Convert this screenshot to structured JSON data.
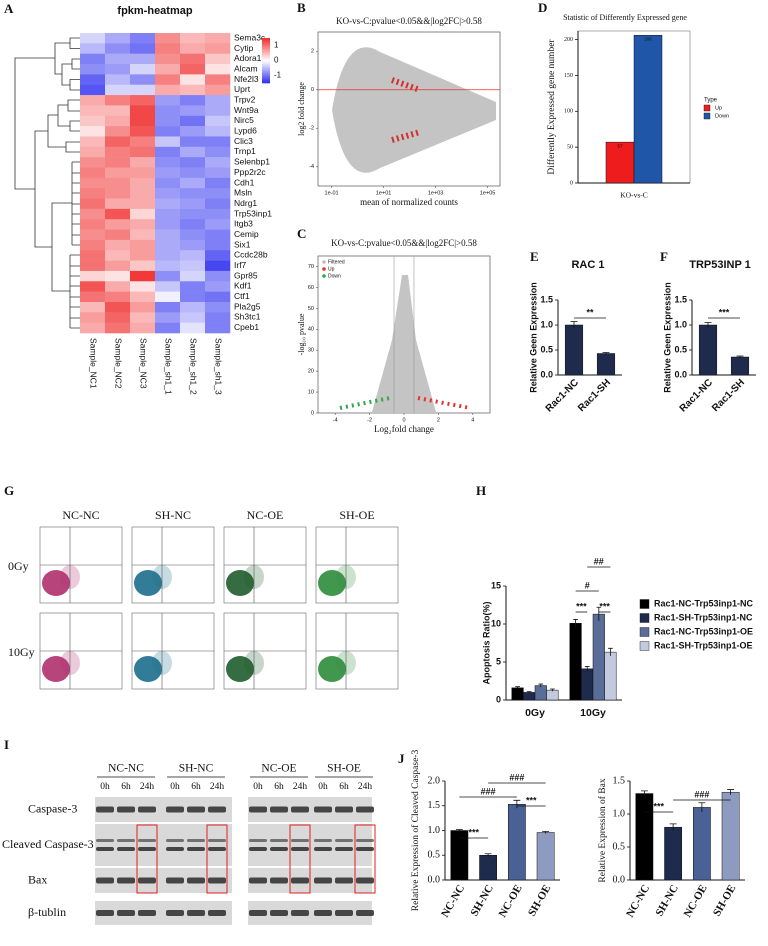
{
  "panel_labels": [
    "A",
    "B",
    "C",
    "D",
    "E",
    "F",
    "G",
    "H",
    "I",
    "J"
  ],
  "chart_data": [
    {
      "type": "heatmap",
      "title": "fpkm-heatmap",
      "categories": [
        "Sample_NC1",
        "Sample_NC2",
        "Sample_NC3",
        "Sample_sh1_1",
        "Sample_sh1_2",
        "Sample_sh1_3"
      ],
      "rows": [
        "Sema3c",
        "Cytip",
        "Adora1",
        "Alcam",
        "Nfe2l3",
        "Uprt",
        "Trpv2",
        "Wnt9a",
        "Nirc5",
        "Lypd6",
        "Clic3",
        "Trnp1",
        "Selenbp1",
        "Ppp2r2c",
        "Cdh1",
        "Msln",
        "Ndrg1",
        "Trp53inp1",
        "Itgb3",
        "Cemip",
        "Six1",
        "Ccdc28b",
        "Irf7",
        "Gpr85",
        "Kdf1",
        "Ctf1",
        "Pla2g5",
        "Sh3tc1",
        "Cpeb1"
      ],
      "values": [
        [
          -0.3,
          -0.6,
          -0.9,
          0.8,
          0.5,
          0.6
        ],
        [
          -0.5,
          -0.8,
          -1.0,
          0.9,
          0.6,
          0.7
        ],
        [
          -0.9,
          -0.6,
          -0.6,
          0.8,
          1.0,
          0.4
        ],
        [
          -0.8,
          -0.7,
          -0.3,
          0.6,
          1.1,
          0.2
        ],
        [
          -1.1,
          -0.5,
          -0.8,
          0.9,
          0.2,
          0.9
        ],
        [
          -1.2,
          -0.3,
          -0.3,
          0.6,
          0.5,
          0.7
        ],
        [
          0.6,
          0.9,
          1.1,
          -0.7,
          -0.9,
          -0.6
        ],
        [
          0.5,
          0.5,
          1.3,
          -0.8,
          -0.7,
          -0.6
        ],
        [
          0.4,
          0.6,
          1.3,
          -0.8,
          -1.0,
          -0.4
        ],
        [
          0.2,
          0.8,
          1.2,
          -0.9,
          -0.7,
          -0.5
        ],
        [
          0.5,
          1.1,
          0.9,
          -0.4,
          -0.9,
          -0.9
        ],
        [
          0.6,
          0.9,
          1.0,
          -0.9,
          -0.6,
          -0.8
        ],
        [
          0.8,
          0.9,
          0.6,
          -0.8,
          -0.9,
          -0.6
        ],
        [
          0.9,
          0.7,
          0.7,
          -0.7,
          -0.8,
          -0.7
        ],
        [
          0.8,
          0.8,
          0.6,
          -0.8,
          -0.6,
          -0.9
        ],
        [
          0.9,
          0.8,
          0.6,
          -0.7,
          -0.8,
          -0.8
        ],
        [
          1.0,
          0.6,
          0.6,
          -0.6,
          -0.7,
          -0.9
        ],
        [
          0.8,
          1.2,
          0.3,
          -0.7,
          -0.8,
          -0.8
        ],
        [
          0.9,
          0.7,
          0.6,
          -0.7,
          -0.9,
          -0.7
        ],
        [
          0.8,
          0.9,
          0.5,
          -0.6,
          -0.8,
          -0.9
        ],
        [
          0.9,
          0.6,
          0.7,
          -0.6,
          -0.7,
          -0.9
        ],
        [
          1.0,
          0.5,
          0.7,
          -0.6,
          -0.5,
          -1.1
        ],
        [
          1.0,
          0.7,
          0.4,
          -0.5,
          -0.4,
          -1.3
        ],
        [
          0.3,
          0.2,
          1.4,
          -0.8,
          -0.3,
          -0.8
        ],
        [
          1.2,
          0.6,
          0.2,
          -0.4,
          -0.9,
          -0.7
        ],
        [
          1.0,
          0.9,
          0.5,
          -0.1,
          -0.9,
          -1.0
        ],
        [
          0.5,
          1.2,
          0.7,
          -0.9,
          -0.5,
          -0.8
        ],
        [
          0.7,
          1.1,
          0.5,
          -0.7,
          -0.4,
          -0.9
        ],
        [
          0.6,
          1.0,
          0.6,
          -0.9,
          -0.2,
          -0.9
        ]
      ],
      "zlim": [
        -1.5,
        1.5
      ],
      "colorbar_ticks": [
        1,
        0,
        -1
      ],
      "colors": {
        "low": "#2b2bf0",
        "mid": "#ffffff",
        "high": "#f02b2b"
      }
    },
    {
      "type": "scatter",
      "title": "KO-vs-C:pvalue<0.05&&|log2FC|>0.58",
      "x_label": "mean of normalized counts",
      "y_label": "log2 fold change",
      "xscale": "log",
      "xlim": [
        0.03,
        300000
      ],
      "xticks": [
        {
          "value": 0.1,
          "label": "1e-01"
        },
        {
          "value": 10,
          "label": "1e+01"
        },
        {
          "value": 1000,
          "label": "1e+03"
        },
        {
          "value": 100000,
          "label": "1e+05"
        }
      ],
      "ylim": [
        -5,
        3
      ],
      "yticks": [
        -4,
        -2,
        0,
        2
      ],
      "reference_line": 0,
      "reference_color": "#e8322e"
    },
    {
      "type": "bar",
      "title": "Statistic of Differently Expressed gene",
      "y_label": "Differently Expressed gene number",
      "categories": [
        "KO-vs-C"
      ],
      "series": [
        {
          "name": "Up",
          "color": "#ee1c1c",
          "values": [
            57
          ]
        },
        {
          "name": "Down",
          "color": "#1f56a8",
          "values": [
            206
          ]
        }
      ],
      "legend_title": "Type",
      "show_values": true,
      "ylim": [
        0,
        212
      ],
      "yticks": [
        0,
        50,
        100,
        150,
        200
      ]
    },
    {
      "type": "scatter",
      "title": "KO-vs-C:pvalue<0.05&&|log2FC|>0.58",
      "x_label": "Log₂fold change",
      "y_label": "-log₁₀ pvalue",
      "xlim": [
        -5,
        5
      ],
      "xticks": [
        -4,
        -2,
        0,
        2,
        4
      ],
      "ylim": [
        0,
        75
      ],
      "yticks": [
        0,
        10,
        20,
        30,
        40,
        50,
        60,
        70
      ],
      "vlines": [
        -0.58,
        0.58
      ],
      "series": [
        {
          "name": "Filtered",
          "color": "#bdbdbd"
        },
        {
          "name": "Up",
          "color": "#e8322e"
        },
        {
          "name": "Down",
          "color": "#2ea84a"
        }
      ]
    },
    {
      "type": "bar",
      "title": "RAC 1",
      "y_label": "Relative Geen Expression",
      "categories": [
        "Rac1-NC",
        "Rac1-SH"
      ],
      "values": [
        1.0,
        0.43
      ],
      "errors": [
        0.07,
        0.02
      ],
      "color": "#1f2b4d",
      "ylim": [
        0,
        1.5
      ],
      "yticks": [
        {
          "value": 0,
          "label": "0.0"
        },
        {
          "value": 0.5,
          "label": "0.5"
        },
        {
          "value": 1,
          "label": "1.0"
        },
        {
          "value": 1.5,
          "label": "1.5"
        }
      ],
      "annotations": [
        "**"
      ]
    },
    {
      "type": "bar",
      "title": "TRP53INP 1",
      "y_label": "Relative Geen Expression",
      "categories": [
        "Rac1-NC",
        "Rac1-SH"
      ],
      "values": [
        1.0,
        0.36
      ],
      "errors": [
        0.05,
        0.02
      ],
      "color": "#1f2b4d",
      "ylim": [
        0,
        1.5
      ],
      "yticks": [
        {
          "value": 0,
          "label": "0.0"
        },
        {
          "value": 0.5,
          "label": "0.5"
        },
        {
          "value": 1,
          "label": "1.0"
        },
        {
          "value": 1.5,
          "label": "1.5"
        }
      ],
      "annotations": [
        "***"
      ]
    },
    {
      "type": "bar",
      "y_label": "Apoptosis Ratio(%)",
      "categories": [
        "0Gy",
        "10Gy"
      ],
      "series": [
        {
          "name": "Rac1-NC-Trp53inp1-NC",
          "color": "#000000",
          "values": [
            1.6,
            10.1
          ],
          "errors": [
            0.15,
            0.5
          ]
        },
        {
          "name": "Rac1-SH-Trp53inp1-NC",
          "color": "#1f2b4d",
          "values": [
            1.0,
            4.1
          ],
          "errors": [
            0.1,
            0.3
          ]
        },
        {
          "name": "Rac1-NC-Trp53inp1-OE",
          "color": "#5a6c98",
          "values": [
            1.9,
            11.3
          ],
          "errors": [
            0.2,
            0.9
          ]
        },
        {
          "name": "Rac1-SH-Trp53inp1-OE",
          "color": "#c3c9de",
          "values": [
            1.3,
            6.3
          ],
          "errors": [
            0.15,
            0.5
          ]
        }
      ],
      "ylim": [
        0,
        15
      ],
      "yticks": [
        0,
        5,
        10,
        15
      ],
      "annotations": [
        "***",
        "#",
        "***",
        "##"
      ]
    },
    {
      "type": "bar",
      "y_label": "Relative Expression of Cleaved Caspase-3",
      "categories": [
        "NC-NC",
        "SH-NC",
        "NC-OE",
        "SH-OE"
      ],
      "values": [
        1.0,
        0.5,
        1.53,
        0.96
      ],
      "errors": [
        0.02,
        0.03,
        0.08,
        0.02
      ],
      "colors": [
        "#000000",
        "#1f2b4d",
        "#4a6196",
        "#8e9bc0"
      ],
      "ylim": [
        0,
        2
      ],
      "yticks": [
        {
          "value": 0,
          "label": "0.0"
        },
        {
          "value": 0.5,
          "label": "0.5"
        },
        {
          "value": 1,
          "label": "1.0"
        },
        {
          "value": 1.5,
          "label": "1.5"
        },
        {
          "value": 2,
          "label": "2.0"
        }
      ],
      "annotations": [
        "***",
        "###",
        "***",
        "###"
      ]
    },
    {
      "type": "bar",
      "y_label": "Relative Expression of Bax",
      "categories": [
        "NC-NC",
        "SH-NC",
        "NC-OE",
        "SH-OE"
      ],
      "values": [
        1.31,
        0.8,
        1.1,
        1.33
      ],
      "errors": [
        0.04,
        0.05,
        0.07,
        0.04
      ],
      "colors": [
        "#000000",
        "#1f2b4d",
        "#4a6196",
        "#8e9bc0"
      ],
      "ylim": [
        0,
        1.5
      ],
      "yticks": [
        {
          "value": 0,
          "label": "0.0"
        },
        {
          "value": 0.5,
          "label": "0.5"
        },
        {
          "value": 1,
          "label": "1.0"
        },
        {
          "value": 1.5,
          "label": "1.5"
        }
      ],
      "annotations": [
        "***",
        "###"
      ]
    }
  ],
  "flow_cytometry": {
    "columns": [
      "NC-NC",
      "SH-NC",
      "NC-OE",
      "SH-OE"
    ],
    "rows": [
      "0Gy",
      "10Gy"
    ]
  },
  "western_blot": {
    "groups": [
      "NC-NC",
      "SH-NC",
      "NC-OE",
      "SH-OE"
    ],
    "times": [
      "0h",
      "6h",
      "24h"
    ],
    "proteins": [
      "Caspase-3",
      "Cleaved Caspase-3",
      "Bax",
      "β-tublin"
    ]
  }
}
